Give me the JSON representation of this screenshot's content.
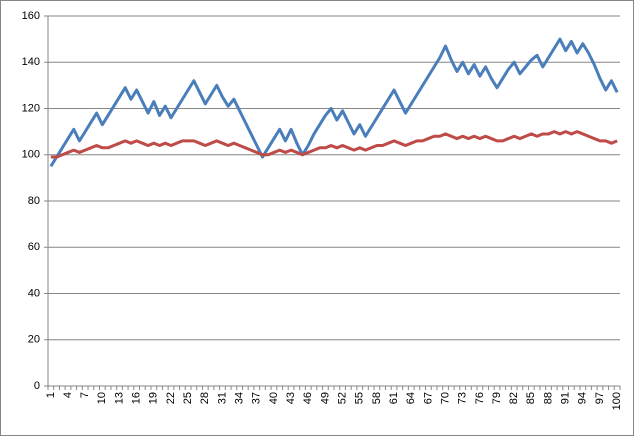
{
  "chart_data": {
    "type": "line",
    "categories": [
      1,
      null,
      null,
      4,
      null,
      null,
      7,
      null,
      null,
      10,
      null,
      null,
      13,
      null,
      null,
      16,
      null,
      null,
      19,
      null,
      null,
      22,
      null,
      null,
      25,
      null,
      null,
      28,
      null,
      null,
      31,
      null,
      null,
      34,
      null,
      null,
      37,
      null,
      null,
      40,
      null,
      null,
      43,
      null,
      null,
      46,
      null,
      null,
      49,
      null,
      null,
      52,
      null,
      null,
      55,
      null,
      null,
      58,
      null,
      null,
      61,
      null,
      null,
      64,
      null,
      null,
      67,
      null,
      null,
      70,
      null,
      null,
      73,
      null,
      null,
      76,
      null,
      null,
      79,
      null,
      null,
      82,
      null,
      null,
      85,
      null,
      null,
      88,
      null,
      null,
      91,
      null,
      null,
      94,
      null,
      null,
      97,
      null,
      null,
      100
    ],
    "series": [
      {
        "color": "#4a7ebb",
        "values": [
          95,
          99,
          103,
          107,
          111,
          106,
          110,
          114,
          118,
          113,
          117,
          121,
          125,
          129,
          124,
          128,
          123,
          118,
          123,
          117,
          121,
          116,
          120,
          124,
          128,
          132,
          127,
          122,
          126,
          130,
          125,
          121,
          124,
          119,
          114,
          109,
          104,
          99,
          103,
          107,
          111,
          106,
          111,
          105,
          100,
          104,
          109,
          113,
          117,
          120,
          115,
          119,
          114,
          109,
          113,
          108,
          112,
          116,
          120,
          124,
          128,
          123,
          118,
          122,
          126,
          130,
          134,
          138,
          142,
          147,
          141,
          136,
          140,
          135,
          139,
          134,
          138,
          133,
          129,
          133,
          137,
          140,
          135,
          138,
          141,
          143,
          138,
          142,
          146,
          150,
          145,
          149,
          144,
          148,
          144,
          139,
          133,
          128,
          132,
          127
        ]
      },
      {
        "color": "#be4b48",
        "values": [
          99,
          99,
          100,
          101,
          102,
          101,
          102,
          103,
          104,
          103,
          103,
          104,
          105,
          106,
          105,
          106,
          105,
          104,
          105,
          104,
          105,
          104,
          105,
          106,
          106,
          106,
          105,
          104,
          105,
          106,
          105,
          104,
          105,
          104,
          103,
          102,
          101,
          100,
          100,
          101,
          102,
          101,
          102,
          101,
          100,
          101,
          102,
          103,
          103,
          104,
          103,
          104,
          103,
          102,
          103,
          102,
          103,
          104,
          104,
          105,
          106,
          105,
          104,
          105,
          106,
          106,
          107,
          108,
          108,
          109,
          108,
          107,
          108,
          107,
          108,
          107,
          108,
          107,
          106,
          106,
          107,
          108,
          107,
          108,
          109,
          108,
          109,
          109,
          110,
          109,
          110,
          109,
          110,
          109,
          108,
          107,
          106,
          106,
          105,
          106
        ]
      }
    ],
    "ylim": [
      0,
      160
    ],
    "yticks": [
      0,
      20,
      40,
      60,
      80,
      100,
      120,
      140,
      160
    ],
    "grid": true
  }
}
